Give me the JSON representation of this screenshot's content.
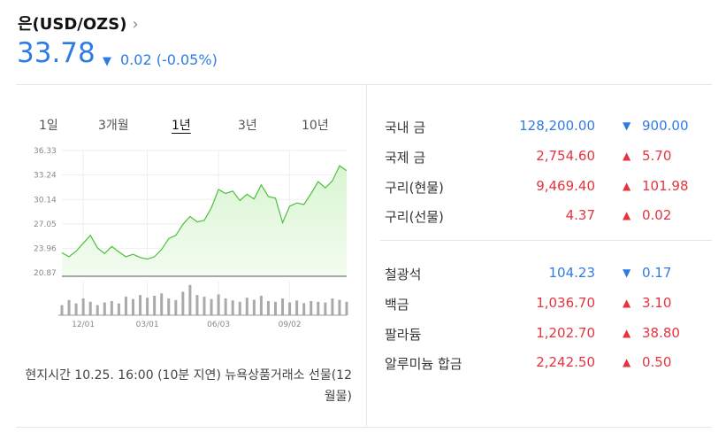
{
  "header": {
    "title": "은(USD/OZS)",
    "price": "33.78",
    "direction": "down",
    "change": "0.02",
    "change_rate": "(-0.05%)"
  },
  "tabs": {
    "items": [
      "1일",
      "3개월",
      "1년",
      "3년",
      "10년"
    ],
    "selected": 2
  },
  "chart_data": {
    "type": "line",
    "color": "#4cbf3c",
    "categories": [
      null,
      null,
      null,
      "12/01",
      null,
      null,
      null,
      null,
      null,
      null,
      null,
      null,
      "03/01",
      null,
      null,
      null,
      null,
      null,
      null,
      null,
      null,
      null,
      "06/03",
      null,
      null,
      null,
      null,
      null,
      null,
      null,
      null,
      null,
      "09/02",
      null,
      null,
      null,
      null,
      null,
      null,
      null,
      null
    ],
    "values": [
      23.4,
      22.9,
      23.6,
      24.6,
      25.6,
      24.0,
      23.3,
      24.2,
      23.5,
      22.9,
      23.2,
      22.8,
      22.6,
      22.9,
      23.8,
      25.2,
      25.6,
      27.0,
      28.0,
      27.3,
      27.5,
      29.1,
      31.4,
      30.9,
      31.2,
      30.0,
      30.8,
      30.2,
      32.0,
      30.5,
      30.3,
      27.2,
      29.3,
      29.7,
      29.5,
      30.9,
      32.4,
      31.6,
      32.5,
      34.4,
      33.78
    ],
    "volume": [
      30,
      45,
      35,
      50,
      40,
      30,
      38,
      42,
      35,
      55,
      48,
      60,
      52,
      58,
      65,
      50,
      45,
      70,
      90,
      60,
      55,
      48,
      62,
      50,
      44,
      40,
      52,
      46,
      58,
      42,
      40,
      50,
      38,
      44,
      36,
      42,
      40,
      38,
      50,
      46,
      40
    ],
    "volume_ylim": [
      0,
      100
    ],
    "ylim": [
      20.87,
      36.33
    ],
    "yticks": [
      20.87,
      23.96,
      27.05,
      30.14,
      33.24,
      36.33
    ],
    "grid": true
  },
  "table": {
    "groups": [
      [
        {
          "name": "국내 금",
          "value": "128,200.00",
          "direction": "down",
          "change": "900.00"
        },
        {
          "name": "국제 금",
          "value": "2,754.60",
          "direction": "up",
          "change": "5.70"
        },
        {
          "name": "구리(현물)",
          "value": "9,469.40",
          "direction": "up",
          "change": "101.98"
        },
        {
          "name": "구리(선물)",
          "value": "4.37",
          "direction": "up",
          "change": "0.02"
        }
      ],
      [
        {
          "name": "철광석",
          "value": "104.23",
          "direction": "down",
          "change": "0.17"
        },
        {
          "name": "백금",
          "value": "1,036.70",
          "direction": "up",
          "change": "3.10"
        },
        {
          "name": "팔라듐",
          "value": "1,202.70",
          "direction": "up",
          "change": "38.80"
        },
        {
          "name": "알루미늄 합금",
          "value": "2,242.50",
          "direction": "up",
          "change": "0.50"
        }
      ]
    ]
  },
  "footer": "현지시간 10.25. 16:00 (10분 지연) 뉴욕상품거래소 선물(12월물)"
}
